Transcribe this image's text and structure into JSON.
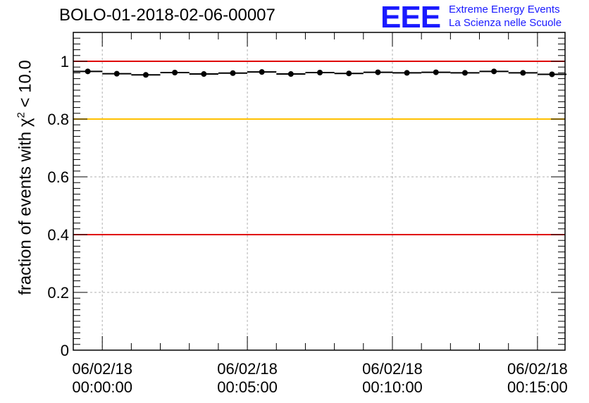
{
  "chart_data": {
    "type": "scatter",
    "title": "BOLO-01-2018-02-06-00007",
    "ylabel_main": "fraction of events with χ",
    "ylabel_sup": "2",
    "ylabel_tail": " < 10.0",
    "xlabel": "",
    "ylim": [
      0,
      1.1
    ],
    "x_ticks": [
      {
        "date": "06/02/18",
        "time": "00:00:00",
        "minutes": 0
      },
      {
        "date": "06/02/18",
        "time": "00:05:00",
        "minutes": 5
      },
      {
        "date": "06/02/18",
        "time": "00:10:00",
        "minutes": 10
      },
      {
        "date": "06/02/18",
        "time": "00:15:00",
        "minutes": 15
      }
    ],
    "y_ticks": [
      "0",
      "0.2",
      "0.4",
      "0.6",
      "0.8",
      "1"
    ],
    "y_tick_values": [
      0,
      0.2,
      0.4,
      0.6,
      0.8,
      1.0
    ],
    "xlim_minutes": [
      -1,
      15.95
    ],
    "series": [
      {
        "x_minutes": [
          -0.5,
          0.5,
          1.5,
          2.5,
          3.5,
          4.5,
          5.5,
          6.5,
          7.5,
          8.5,
          9.5,
          10.5,
          11.5,
          12.5,
          13.5,
          14.5,
          15.5
        ],
        "values": [
          0.965,
          0.957,
          0.953,
          0.961,
          0.956,
          0.959,
          0.963,
          0.956,
          0.961,
          0.958,
          0.962,
          0.96,
          0.962,
          0.96,
          0.965,
          0.96,
          0.955
        ],
        "color": "#000000"
      }
    ],
    "reference_lines": [
      {
        "y": 1.0,
        "color": "#e00000"
      },
      {
        "y": 0.8,
        "color": "#ffc000"
      },
      {
        "y": 0.4,
        "color": "#e00000"
      }
    ],
    "grid": true
  },
  "logo": {
    "mark": "EEE",
    "line1": "Extreme Energy Events",
    "line2": "La Scienza nelle Scuole",
    "color": "#1a1aff"
  }
}
